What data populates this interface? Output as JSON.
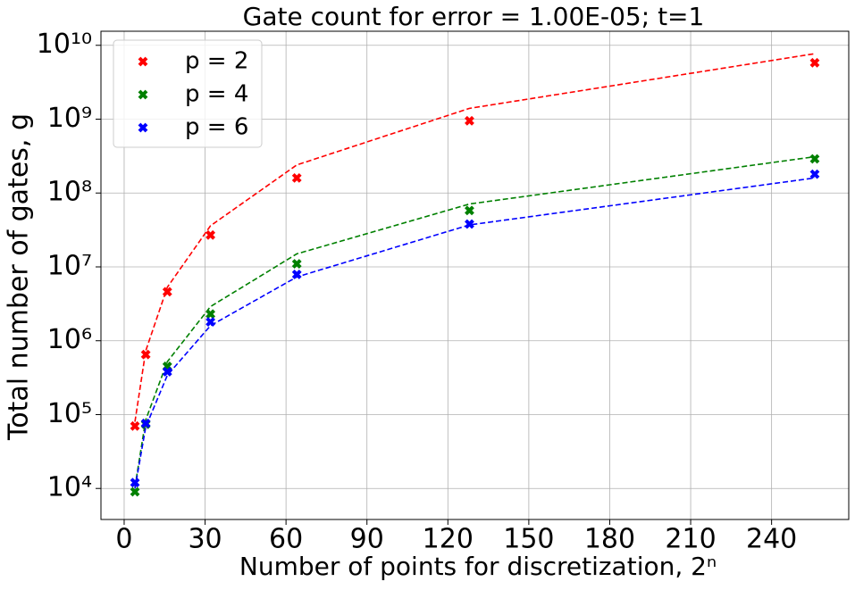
{
  "chart_data": {
    "type": "scatter",
    "title": "Gate count for error = 1.00E-05; t=1",
    "xlabel": "Number of points for discretization, 2ⁿ",
    "ylabel": "Total number of gates, g",
    "x": [
      4,
      8,
      16,
      32,
      64,
      128,
      256
    ],
    "series": [
      {
        "name": "p = 2",
        "color": "#ff0000",
        "values": [
          70000,
          650000,
          4600000,
          27000000,
          160000000,
          950000000,
          5800000000
        ],
        "fit_values": [
          80000,
          730000,
          5300000,
          36000000,
          240000000,
          1400000000,
          7700000000
        ]
      },
      {
        "name": "p = 4",
        "color": "#008000",
        "values": [
          9000,
          74000,
          450000,
          2300000,
          11000000,
          58000000,
          290000000
        ],
        "fit_values": [
          10500,
          85000,
          520000,
          2900000,
          15000000,
          71000000,
          310000000
        ]
      },
      {
        "name": "p = 6",
        "color": "#0000ff",
        "values": [
          12000,
          76000,
          380000,
          1800000,
          7900000,
          38000000,
          180000000
        ],
        "fit_values": [
          10000,
          68000,
          340000,
          1600000,
          7300000,
          37000000,
          160000000
        ]
      }
    ],
    "xlim": [
      -8.6,
      268.6
    ],
    "ylim": [
      3800,
      15500000000
    ],
    "xticks": [
      0,
      30,
      60,
      90,
      120,
      150,
      180,
      210,
      240
    ],
    "yticks": [
      {
        "value": 10000,
        "label": "10⁴"
      },
      {
        "value": 100000,
        "label": "10⁵"
      },
      {
        "value": 1000000,
        "label": "10⁶"
      },
      {
        "value": 10000000,
        "label": "10⁷"
      },
      {
        "value": 100000000,
        "label": "10⁸"
      },
      {
        "value": 1000000000,
        "label": "10⁹"
      },
      {
        "value": 10000000000,
        "label": "10¹⁰"
      }
    ],
    "ylog": true,
    "grid": true,
    "legend": "upper-left"
  }
}
